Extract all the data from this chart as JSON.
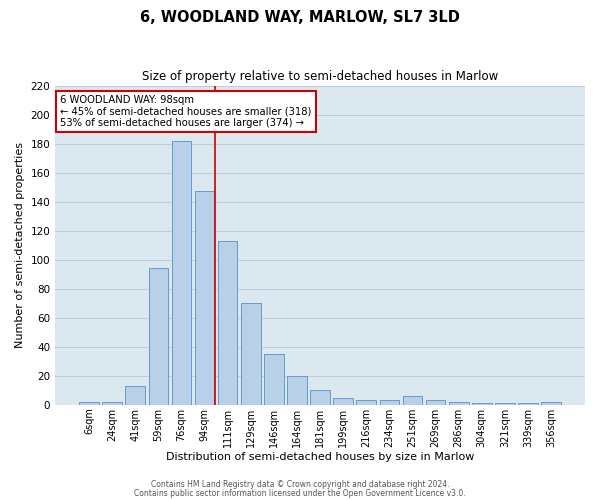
{
  "title": "6, WOODLAND WAY, MARLOW, SL7 3LD",
  "subtitle": "Size of property relative to semi-detached houses in Marlow",
  "xlabel": "Distribution of semi-detached houses by size in Marlow",
  "ylabel": "Number of semi-detached properties",
  "bin_labels": [
    "6sqm",
    "24sqm",
    "41sqm",
    "59sqm",
    "76sqm",
    "94sqm",
    "111sqm",
    "129sqm",
    "146sqm",
    "164sqm",
    "181sqm",
    "199sqm",
    "216sqm",
    "234sqm",
    "251sqm",
    "269sqm",
    "286sqm",
    "304sqm",
    "321sqm",
    "339sqm",
    "356sqm"
  ],
  "values": [
    2,
    2,
    13,
    94,
    182,
    147,
    113,
    70,
    35,
    20,
    10,
    5,
    3,
    3,
    6,
    3,
    2,
    1,
    1,
    1,
    2
  ],
  "bar_color": "#b8d0e8",
  "bar_edge_color": "#6699cc",
  "property_line_color": "#cc0000",
  "property_line_x": 5.5,
  "annotation_text_line1": "6 WOODLAND WAY: 98sqm",
  "annotation_text_line2": "← 45% of semi-detached houses are smaller (318)",
  "annotation_text_line3": "53% of semi-detached houses are larger (374) →",
  "annotation_box_color": "#ffffff",
  "annotation_box_edge_color": "#cc0000",
  "ylim": [
    0,
    220
  ],
  "yticks": [
    0,
    20,
    40,
    60,
    80,
    100,
    120,
    140,
    160,
    180,
    200,
    220
  ],
  "bg_color": "#dce8f0",
  "grid_color": "#b8cfe0",
  "footer_line1": "Contains HM Land Registry data © Crown copyright and database right 2024.",
  "footer_line2": "Contains public sector information licensed under the Open Government Licence v3.0."
}
